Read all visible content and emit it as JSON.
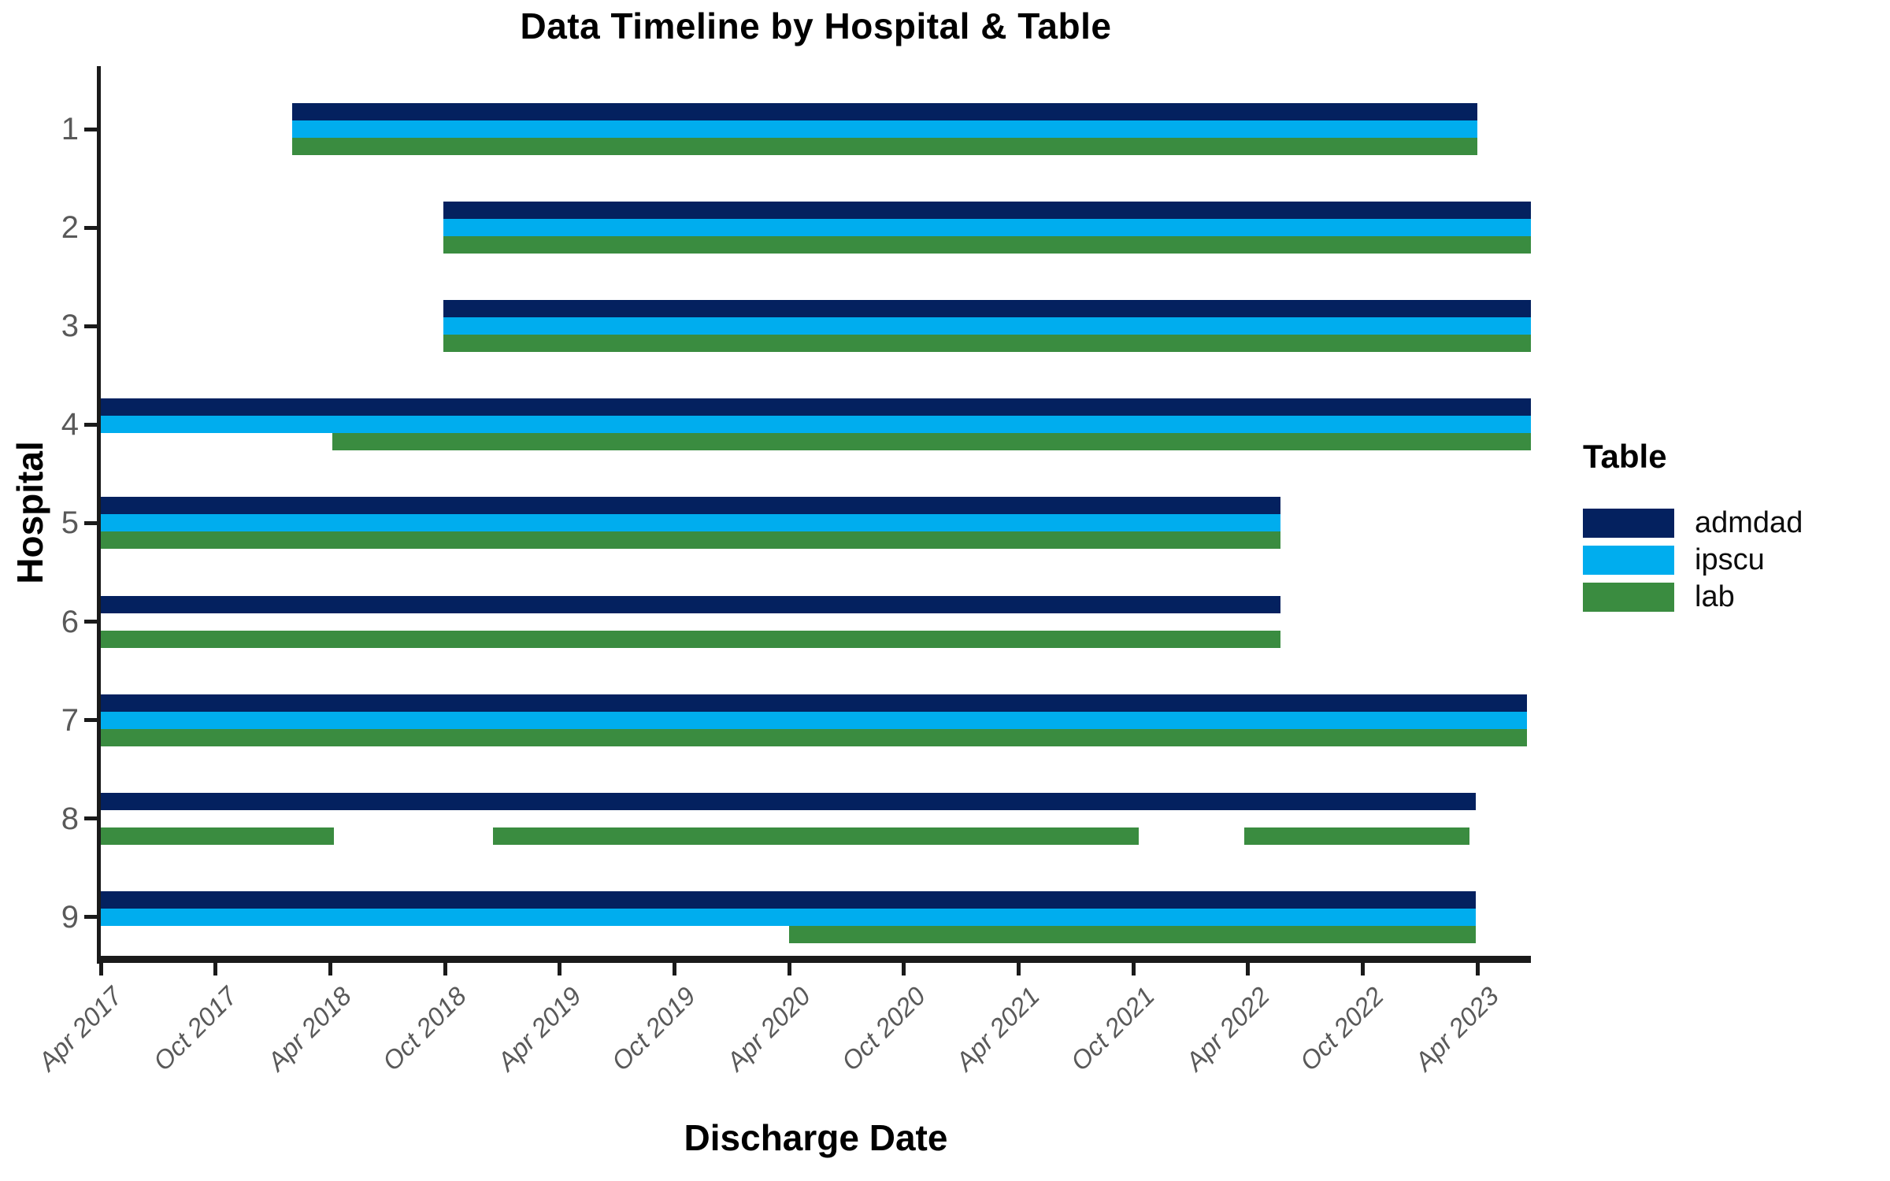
{
  "title": "Data Timeline by Hospital & Table",
  "x_axis": {
    "label": "Discharge Date",
    "tick_labels": [
      "Apr 2017",
      "Oct 2017",
      "Apr 2018",
      "Oct 2018",
      "Apr 2019",
      "Oct 2019",
      "Apr 2020",
      "Oct 2020",
      "Apr 2021",
      "Oct 2021",
      "Apr 2022",
      "Oct 2022",
      "Apr 2023"
    ],
    "tick_month_offsets": [
      0,
      6,
      12,
      18,
      24,
      30,
      36,
      42,
      48,
      54,
      60,
      66,
      72
    ]
  },
  "y_axis": {
    "label": "Hospital",
    "tick_labels": [
      "1",
      "2",
      "3",
      "4",
      "5",
      "6",
      "7",
      "8",
      "9"
    ]
  },
  "legend": {
    "title": "Table",
    "items": [
      {
        "label": "admdad",
        "color": "#04215f"
      },
      {
        "label": "ipscu",
        "color": "#00adee"
      },
      {
        "label": "lab",
        "color": "#3a8c40"
      }
    ]
  },
  "colors": {
    "admdad_navy": "#04215f",
    "ipscu_cyan": "#00adee",
    "lab_green": "#3a8c40",
    "axis_line": "#1a1a1a",
    "tick_label_gray": "#595959",
    "text_black": "#000000",
    "background": "#ffffff"
  },
  "chart_data": {
    "type": "bar",
    "subtype": "horizontal-interval-timeline (Gantt-style data availability)",
    "title": "Data Timeline by Hospital & Table",
    "xlabel": "Discharge Date",
    "ylabel": "Hospital",
    "legend_title": "Table",
    "series_order": [
      "admdad",
      "ipscu",
      "lab"
    ],
    "unit": "months offset from 2017-04 (Apr 2017 = 0, 6 = Oct 2017, 72 = Apr 2023)",
    "x_domain": [
      0,
      74.8
    ],
    "grid": "off",
    "legend_position": "right",
    "hospitals": [
      {
        "hospital": "1",
        "tables": {
          "admdad": [
            [
              10,
              72
            ]
          ],
          "ipscu": [
            [
              10,
              72
            ]
          ],
          "lab": [
            [
              10,
              72
            ]
          ]
        },
        "approx": {
          "admdad": "2018-02 → 2023-04",
          "ipscu": "2018-02 → 2023-04",
          "lab": "2018-02 → 2023-04"
        }
      },
      {
        "hospital": "2",
        "tables": {
          "admdad": [
            [
              17.9,
              74.8
            ]
          ],
          "ipscu": [
            [
              17.9,
              74.8
            ]
          ],
          "lab": [
            [
              17.9,
              74.8
            ]
          ]
        },
        "approx": {
          "admdad": "2018-10 → 2023-06",
          "ipscu": "2018-10 → 2023-06",
          "lab": "2018-10 → 2023-06"
        }
      },
      {
        "hospital": "3",
        "tables": {
          "admdad": [
            [
              17.9,
              74.8
            ]
          ],
          "ipscu": [
            [
              17.9,
              74.8
            ]
          ],
          "lab": [
            [
              17.9,
              74.8
            ]
          ]
        },
        "approx": {
          "admdad": "2018-10 → 2023-06",
          "ipscu": "2018-10 → 2023-06",
          "lab": "2018-10 → 2023-06"
        }
      },
      {
        "hospital": "4",
        "tables": {
          "admdad": [
            [
              0,
              74.8
            ]
          ],
          "ipscu": [
            [
              0,
              74.8
            ]
          ],
          "lab": [
            [
              12.1,
              74.8
            ]
          ]
        },
        "approx": {
          "admdad": "2017-04 → 2023-06",
          "ipscu": "2017-04 → 2023-06",
          "lab": "2018-04 → 2023-06"
        }
      },
      {
        "hospital": "5",
        "tables": {
          "admdad": [
            [
              0,
              61.7
            ]
          ],
          "ipscu": [
            [
              0,
              61.7
            ]
          ],
          "lab": [
            [
              0,
              61.7
            ]
          ]
        },
        "approx": {
          "admdad": "2017-04 → 2022-05",
          "ipscu": "2017-04 → 2022-05",
          "lab": "2017-04 → 2022-05"
        }
      },
      {
        "hospital": "6",
        "tables": {
          "admdad": [
            [
              0,
              61.7
            ]
          ],
          "lab": [
            [
              0,
              61.7
            ]
          ]
        },
        "approx": {
          "admdad": "2017-04 → 2022-05",
          "lab": "2017-04 → 2022-05",
          "ipscu": "absent"
        }
      },
      {
        "hospital": "7",
        "tables": {
          "admdad": [
            [
              0,
              74.6
            ]
          ],
          "ipscu": [
            [
              0,
              74.6
            ]
          ],
          "lab": [
            [
              0,
              74.6
            ]
          ]
        },
        "approx": {
          "admdad": "2017-04 → 2023-06",
          "ipscu": "2017-04 → 2023-06",
          "lab": "2017-04 → 2023-06"
        }
      },
      {
        "hospital": "8",
        "tables": {
          "admdad": [
            [
              0,
              71.9
            ]
          ],
          "lab": [
            [
              0,
              12.2
            ],
            [
              20.5,
              54.3
            ],
            [
              59.8,
              71.6
            ]
          ]
        },
        "approx": {
          "admdad": "2017-04 → 2023-04",
          "lab": "2017-04 → 2018-04; 2018-12 → 2021-10; 2022-03 → 2023-03",
          "ipscu": "absent"
        }
      },
      {
        "hospital": "9",
        "tables": {
          "admdad": [
            [
              0,
              71.9
            ]
          ],
          "ipscu": [
            [
              0,
              71.9
            ]
          ],
          "lab": [
            [
              36,
              71.9
            ]
          ]
        },
        "approx": {
          "admdad": "2017-04 → 2023-04",
          "ipscu": "2017-04 → 2023-04",
          "lab": "2020-04 → 2023-04"
        }
      }
    ]
  }
}
